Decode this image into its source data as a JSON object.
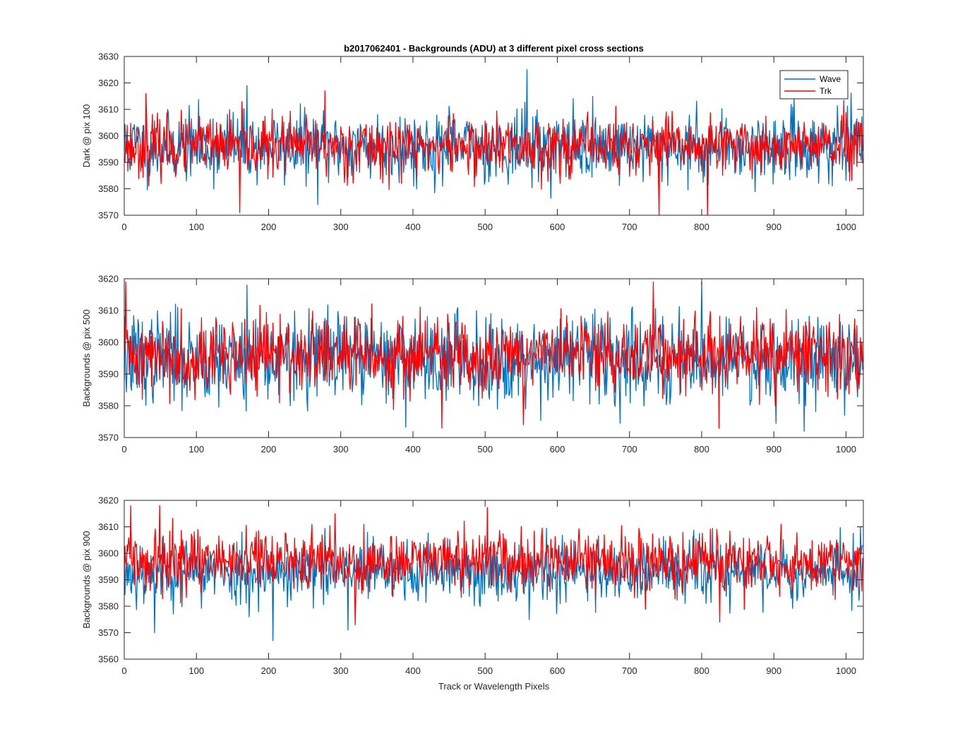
{
  "colors": {
    "wave": "#0072BD",
    "trk": "#FF0000",
    "axis": "#262626",
    "background": "#FFFFFF"
  },
  "chart_data": [
    {
      "type": "line",
      "title": "b2017062401 - Backgrounds (ADU) at 3 different pixel cross sections",
      "xlabel": "",
      "ylabel": "Dark @ pix 100",
      "xlim": [
        0,
        1024
      ],
      "ylim": [
        3570,
        3630
      ],
      "xticks": [
        0,
        100,
        200,
        300,
        400,
        500,
        600,
        700,
        800,
        900,
        1000
      ],
      "xtick_labels": [
        "0",
        "100",
        "200",
        "300",
        "400",
        "500",
        "600",
        "700",
        "800",
        "900",
        "1000"
      ],
      "yticks": [
        3570,
        3580,
        3590,
        3600,
        3610,
        3620,
        3630
      ],
      "ytick_labels": [
        "3570",
        "3580",
        "3590",
        "3600",
        "3610",
        "3620",
        "3630"
      ],
      "legend": {
        "placement": "top-right",
        "entries": [
          "Wave",
          "Trk"
        ]
      },
      "series": [
        {
          "name": "Wave",
          "color": "#0072BD",
          "n": 1024,
          "mean": 3596,
          "spread": 6.5,
          "seed": 11,
          "spikes": [
            [
              558,
              3625
            ],
            [
              268,
              3574
            ],
            [
              170,
              3619
            ],
            [
              60,
              3610
            ]
          ]
        },
        {
          "name": "Trk",
          "color": "#FF0000",
          "n": 1024,
          "mean": 3596,
          "spread": 5.5,
          "seed": 23,
          "spikes": [
            [
              160,
              3571
            ],
            [
              278,
              3617
            ],
            [
              741,
              3570
            ],
            [
              808,
              3570
            ],
            [
              30,
              3616
            ]
          ]
        }
      ]
    },
    {
      "type": "line",
      "title": "",
      "xlabel": "",
      "ylabel": "Backgrounds @ pix 500",
      "xlim": [
        0,
        1024
      ],
      "ylim": [
        3570,
        3620
      ],
      "xticks": [
        0,
        100,
        200,
        300,
        400,
        500,
        600,
        700,
        800,
        900,
        1000
      ],
      "xtick_labels": [
        "0",
        "100",
        "200",
        "300",
        "400",
        "500",
        "600",
        "700",
        "800",
        "900",
        "1000"
      ],
      "yticks": [
        3570,
        3580,
        3590,
        3600,
        3610,
        3620
      ],
      "ytick_labels": [
        "3570",
        "3580",
        "3590",
        "3600",
        "3610",
        "3620"
      ],
      "series": [
        {
          "name": "Wave",
          "color": "#0072BD",
          "n": 1024,
          "mean": 3595,
          "spread": 7,
          "seed": 37,
          "spikes": [
            [
              942,
              3572
            ],
            [
              170,
              3618
            ],
            [
              800,
              3619
            ]
          ]
        },
        {
          "name": "Trk",
          "color": "#FF0000",
          "n": 1024,
          "mean": 3596,
          "spread": 6,
          "seed": 41,
          "spikes": [
            [
              2,
              3619
            ],
            [
              440,
              3573
            ],
            [
              553,
              3574
            ],
            [
              733,
              3619
            ],
            [
              824,
              3573
            ]
          ]
        }
      ]
    },
    {
      "type": "line",
      "title": "",
      "xlabel": "Track or Wavelength Pixels",
      "ylabel": "Backgrounds @ pix 900",
      "xlim": [
        0,
        1024
      ],
      "ylim": [
        3560,
        3620
      ],
      "xticks": [
        0,
        100,
        200,
        300,
        400,
        500,
        600,
        700,
        800,
        900,
        1000
      ],
      "xtick_labels": [
        "0",
        "100",
        "200",
        "300",
        "400",
        "500",
        "600",
        "700",
        "800",
        "900",
        "1000"
      ],
      "yticks": [
        3560,
        3570,
        3580,
        3590,
        3600,
        3610,
        3620
      ],
      "ytick_labels": [
        "3560",
        "3570",
        "3580",
        "3590",
        "3600",
        "3610",
        "3620"
      ],
      "series": [
        {
          "name": "Wave",
          "color": "#0072BD",
          "n": 1024,
          "mean": 3593,
          "spread": 6,
          "seed": 53,
          "spikes": [
            [
              206,
              3567
            ],
            [
              42,
              3570
            ],
            [
              310,
              3571
            ],
            [
              1020,
              3610
            ]
          ]
        },
        {
          "name": "Trk",
          "color": "#FF0000",
          "n": 1024,
          "mean": 3597,
          "spread": 5.5,
          "seed": 59,
          "spikes": [
            [
              49,
              3618
            ],
            [
              292,
              3615
            ],
            [
              825,
              3574
            ],
            [
              320,
              3573
            ]
          ]
        }
      ]
    }
  ]
}
